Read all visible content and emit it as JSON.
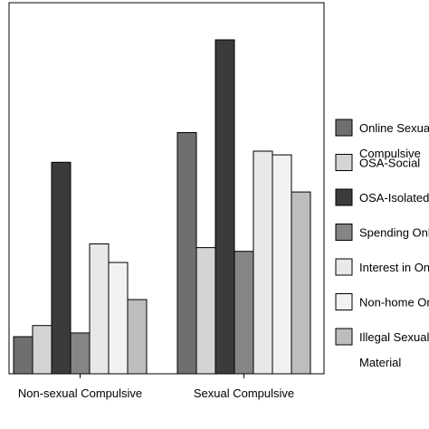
{
  "chart_data": {
    "type": "bar",
    "title": "",
    "xlabel": "",
    "ylabel": "",
    "ylim": [
      0,
      100
    ],
    "grid": false,
    "legend_position": "right",
    "categories": [
      "Non-sexual Compulsive",
      "Sexual Compulsive"
    ],
    "series": [
      {
        "name": "Online Sexual Compulsive",
        "color": "#6f6f6f",
        "values": [
          10,
          65
        ]
      },
      {
        "name": "OSA-Social",
        "color": "#d4d4d4",
        "values": [
          13,
          34
        ]
      },
      {
        "name": "OSA-Isolated",
        "color": "#3b3b3b",
        "values": [
          57,
          90
        ]
      },
      {
        "name": "Spending Online",
        "color": "#858585",
        "values": [
          11,
          33
        ]
      },
      {
        "name": "Interest in Online",
        "color": "#e8e8e8",
        "values": [
          35,
          60
        ]
      },
      {
        "name": "Non-home Online",
        "color": "#f2f2f2",
        "values": [
          30,
          59
        ]
      },
      {
        "name": "Illegal Sexual Material",
        "color": "#bdbdbd",
        "values": [
          20,
          49
        ]
      }
    ],
    "legend_lines": [
      [
        "Online Sexual",
        "Compulsive"
      ],
      [
        "OSA-Social"
      ],
      [
        "OSA-Isolated"
      ],
      [
        "Spending Online"
      ],
      [
        "Interest in Online"
      ],
      [
        "Non-home Online"
      ],
      [
        "Illegal Sexual",
        "Material"
      ]
    ]
  }
}
